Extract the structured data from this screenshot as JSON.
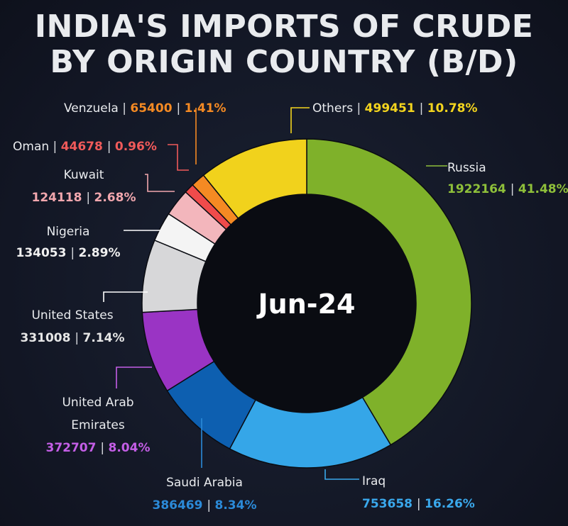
{
  "title_lines": [
    "INDIA'S IMPORTS OF CRUDE",
    "BY ORIGIN COUNTRY (B/D)"
  ],
  "chart_data": {
    "type": "pie",
    "title": "INDIA'S IMPORTS OF CRUDE BY ORIGIN COUNTRY (B/D)",
    "center_label": "Jun-24",
    "slices": [
      {
        "name": "Russia",
        "value": 1922164,
        "percent": "41.48%",
        "value_label": "1922164",
        "color": "#7fb12a",
        "label_color": "#8fc03a"
      },
      {
        "name": "Iraq",
        "value": 753658,
        "percent": "16.26%",
        "value_label": "753658",
        "color": "#35a6e8",
        "label_color": "#3aa8ec"
      },
      {
        "name": "Saudi Arabia",
        "value": 386469,
        "percent": "8.34%",
        "value_label": "386469",
        "color": "#0d5fb0",
        "label_color": "#2b8ad8"
      },
      {
        "name": "United Arab Emirates",
        "value": 372707,
        "percent": "8.04%",
        "value_label": "372707",
        "color": "#9a34c4",
        "label_color": "#c45ee6"
      },
      {
        "name": "United States",
        "value": 331008,
        "percent": "7.14%",
        "value_label": "331008",
        "color": "#d7d7d9",
        "label_color": "#e6e6e6"
      },
      {
        "name": "Nigeria",
        "value": 134053,
        "percent": "2.89%",
        "value_label": "134053",
        "color": "#f4f4f4",
        "label_color": "#f0f0f0"
      },
      {
        "name": "Kuwait",
        "value": 124118,
        "percent": "2.68%",
        "value_label": "124118",
        "color": "#f3b6bc",
        "label_color": "#f2a7ae"
      },
      {
        "name": "Oman",
        "value": 44678,
        "percent": "0.96%",
        "value_label": "44678",
        "color": "#f04b4b",
        "label_color": "#f05a5a"
      },
      {
        "name": "Venzuela",
        "value": 65400,
        "percent": "1.41%",
        "value_label": "65400",
        "color": "#f58a23",
        "label_color": "#f58a23"
      },
      {
        "name": "Others",
        "value": 499451,
        "percent": "10.78%",
        "value_label": "499451",
        "color": "#f1d21c",
        "label_color": "#f3d41e"
      }
    ]
  }
}
